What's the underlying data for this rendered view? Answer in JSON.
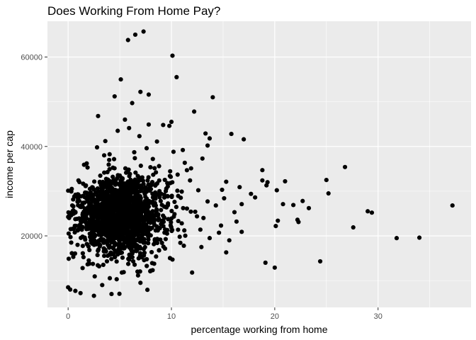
{
  "chart_data": {
    "type": "scatter",
    "title": "Does Working From Home Pay?",
    "xlabel": "percentage working from home",
    "ylabel": "income per cap",
    "xlim": [
      -2,
      39
    ],
    "ylim": [
      4000,
      68000
    ],
    "xticks": [
      0,
      10,
      20,
      30
    ],
    "xtick_labels": [
      "0",
      "10",
      "20",
      "30"
    ],
    "yticks": [
      20000,
      40000,
      60000
    ],
    "ytick_labels": [
      "20000",
      "40000",
      "60000"
    ],
    "grid": true,
    "legend": "none",
    "point_color": "#000000",
    "panel_color": "#ebebeb",
    "grid_color": "#ffffff",
    "series": [
      {
        "points": [
          [
            6.5,
            65000
          ],
          [
            7.3,
            65700
          ],
          [
            5.8,
            63800
          ],
          [
            10.1,
            60300
          ],
          [
            10.5,
            55500
          ],
          [
            5.1,
            55000
          ],
          [
            7.0,
            52200
          ],
          [
            7.8,
            51600
          ],
          [
            4.5,
            51200
          ],
          [
            14.0,
            51000
          ],
          [
            6.2,
            49700
          ],
          [
            12.2,
            47800
          ],
          [
            2.9,
            46800
          ],
          [
            5.5,
            46000
          ],
          [
            10.0,
            45500
          ],
          [
            9.2,
            44800
          ],
          [
            9.8,
            44600
          ],
          [
            15.8,
            42800
          ],
          [
            13.3,
            42900
          ],
          [
            13.7,
            41800
          ],
          [
            17.0,
            41600
          ],
          [
            13.5,
            40200
          ],
          [
            11.1,
            39200
          ],
          [
            6.4,
            38700
          ],
          [
            18.8,
            34700
          ],
          [
            26.8,
            35400
          ],
          [
            25.0,
            32500
          ],
          [
            18.8,
            32400
          ],
          [
            19.3,
            32000
          ],
          [
            21.0,
            32200
          ],
          [
            15.3,
            32100
          ],
          [
            17.7,
            29400
          ],
          [
            19.2,
            31300
          ],
          [
            20.2,
            30200
          ],
          [
            20.8,
            27100
          ],
          [
            22.7,
            27800
          ],
          [
            23.3,
            26200
          ],
          [
            21.8,
            26900
          ],
          [
            25.2,
            29500
          ],
          [
            29.0,
            25500
          ],
          [
            29.4,
            25200
          ],
          [
            27.6,
            21900
          ],
          [
            37.2,
            26800
          ],
          [
            31.8,
            19500
          ],
          [
            34.0,
            19600
          ],
          [
            24.4,
            14300
          ],
          [
            19.1,
            14000
          ],
          [
            20.0,
            12900
          ],
          [
            12.0,
            11800
          ],
          [
            20.1,
            22200
          ],
          [
            20.3,
            23400
          ],
          [
            22.2,
            23600
          ],
          [
            22.3,
            23100
          ],
          [
            16.8,
            20900
          ],
          [
            15.3,
            16300
          ],
          [
            12.9,
            17500
          ],
          [
            10.1,
            14700
          ],
          [
            8.0,
            12200
          ],
          [
            7.0,
            9500
          ],
          [
            4.7,
            10300
          ],
          [
            4.2,
            7000
          ],
          [
            2.5,
            6600
          ],
          [
            1.2,
            7200
          ],
          [
            0.2,
            8000
          ],
          [
            0.0,
            8500
          ],
          [
            0.7,
            7700
          ],
          [
            3.3,
            9000
          ],
          [
            0.1,
            24000
          ],
          [
            0.3,
            18500
          ],
          [
            0.5,
            15300
          ],
          [
            1.4,
            12800
          ],
          [
            2.0,
            14500
          ],
          [
            3.0,
            13200
          ],
          [
            4.0,
            15800
          ],
          [
            5.2,
            11800
          ],
          [
            6.3,
            14300
          ],
          [
            8.8,
            16800
          ],
          [
            11.2,
            17800
          ],
          [
            13.7,
            19500
          ],
          [
            14.8,
            22300
          ],
          [
            16.1,
            25300
          ],
          [
            16.8,
            27100
          ],
          [
            18.1,
            28600
          ],
          [
            12.6,
            30200
          ],
          [
            11.8,
            32400
          ],
          [
            10.6,
            33700
          ],
          [
            9.6,
            31800
          ],
          [
            8.8,
            35600
          ],
          [
            8.2,
            37200
          ],
          [
            7.6,
            39600
          ],
          [
            6.9,
            42300
          ],
          [
            5.9,
            44100
          ],
          [
            4.8,
            43500
          ],
          [
            3.6,
            41200
          ],
          [
            2.8,
            39800
          ],
          [
            1.8,
            36200
          ],
          [
            1.0,
            32400
          ],
          [
            0.6,
            28800
          ],
          [
            11.5,
            26100
          ],
          [
            12.3,
            25400
          ],
          [
            13.1,
            24000
          ],
          [
            14.3,
            26800
          ],
          [
            15.1,
            28400
          ],
          [
            16.3,
            23200
          ],
          [
            9.3,
            29200
          ],
          [
            10.3,
            27600
          ],
          [
            11.0,
            22800
          ],
          [
            12.8,
            21400
          ],
          [
            14.6,
            20700
          ],
          [
            15.6,
            19000
          ],
          [
            10.8,
            19800
          ],
          [
            9.6,
            21300
          ],
          [
            13.5,
            27700
          ],
          [
            14.9,
            30300
          ],
          [
            16.6,
            30900
          ],
          [
            11.9,
            35100
          ],
          [
            13.0,
            37300
          ],
          [
            10.2,
            38800
          ],
          [
            8.6,
            41100
          ],
          [
            7.8,
            44900
          ]
        ]
      }
    ],
    "cluster": {
      "description_free_params": "dense core of points",
      "center": [
        4.3,
        24500
      ],
      "spread": [
        2.0,
        4200
      ],
      "count": 1600
    }
  }
}
